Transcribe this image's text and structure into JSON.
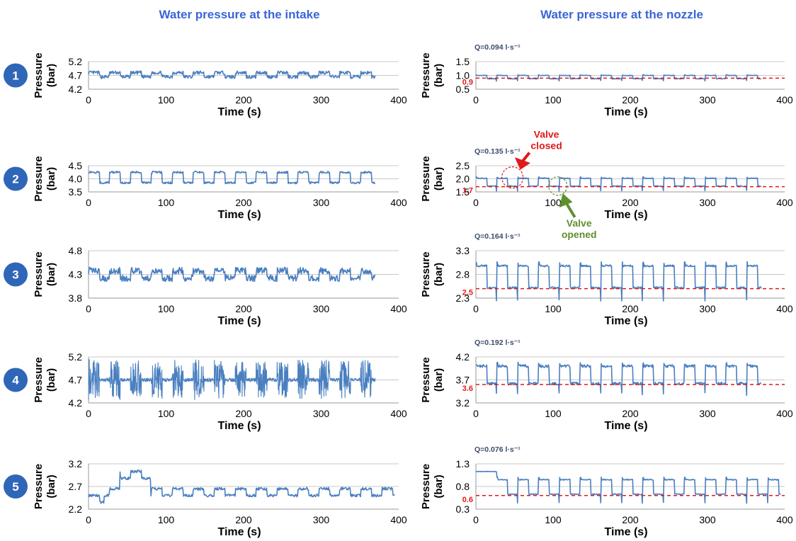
{
  "headers": {
    "left": "Water pressure at the intake",
    "right": "Water pressure at the nozzle"
  },
  "colors": {
    "series": "#4a7fc0",
    "reference": "#e01919",
    "closed": "#e01919",
    "opened": "#5f8f30",
    "badge": "#2f66b7",
    "header": "#3a64d6"
  },
  "chart_data": [
    {
      "id": "intake-1",
      "row": "1",
      "side": "intake",
      "type": "line",
      "ylabel": "Pressure (bar)",
      "xlabel": "Time (s)",
      "xlim": [
        0,
        400
      ],
      "ylim": [
        4.2,
        5.2
      ],
      "yticks": [
        "5.2",
        "4.7",
        "4.2"
      ],
      "xticks": [
        "0",
        "100",
        "200",
        "300",
        "400"
      ],
      "data_x_end": 370,
      "period": 27,
      "low": 4.65,
      "high": 4.8,
      "noise": 0.06,
      "grid": true
    },
    {
      "id": "nozzle-1",
      "row": "1",
      "side": "nozzle",
      "type": "line",
      "ylabel": "Pressure (bar)",
      "xlabel": "Time (s)",
      "flow": "Q=0.094 l·s⁻¹",
      "xlim": [
        0,
        400
      ],
      "ylim": [
        0.5,
        1.5
      ],
      "yticks": [
        "1.5",
        "1.0",
        "0.5"
      ],
      "xticks": [
        "0",
        "100",
        "200",
        "300",
        "400"
      ],
      "data_x_end": 370,
      "period": 27,
      "low": 0.88,
      "high": 1.0,
      "noise": 0.01,
      "reference": 0.9,
      "reference_label": "0.9",
      "grid": true
    },
    {
      "id": "intake-2",
      "row": "2",
      "side": "intake",
      "type": "line",
      "ylabel": "Pressure (bar)",
      "xlabel": "Time (s)",
      "xlim": [
        0,
        400
      ],
      "ylim": [
        3.5,
        4.5
      ],
      "yticks": [
        "4.5",
        "4.0",
        "3.5"
      ],
      "xticks": [
        "0",
        "100",
        "200",
        "300",
        "400"
      ],
      "data_x_end": 370,
      "period": 27,
      "low": 3.85,
      "high": 4.25,
      "noise": 0.04,
      "grid": true
    },
    {
      "id": "nozzle-2",
      "row": "2",
      "side": "nozzle",
      "type": "line",
      "ylabel": "Pressure (bar)",
      "xlabel": "Time (s)",
      "flow": "Q=0.135 l·s⁻¹",
      "xlim": [
        0,
        400
      ],
      "ylim": [
        1.5,
        2.5
      ],
      "yticks": [
        "2.5",
        "2.0",
        "1.5"
      ],
      "xticks": [
        "0",
        "100",
        "200",
        "300",
        "400"
      ],
      "data_x_end": 370,
      "period": 27,
      "low": 1.72,
      "high": 2.02,
      "noise": 0.015,
      "reference": 1.7,
      "reference_label": "1.7",
      "grid": true,
      "annotations": {
        "closed": {
          "label1": "Valve",
          "label2": "closed",
          "x": 62,
          "y": 2.05
        },
        "opened": {
          "label1": "Valve",
          "label2": "opened",
          "x": 108,
          "y": 1.75
        }
      }
    },
    {
      "id": "intake-3",
      "row": "3",
      "side": "intake",
      "type": "line",
      "ylabel": "Pressure (bar)",
      "xlabel": "Time (s)",
      "xlim": [
        0,
        400
      ],
      "ylim": [
        3.8,
        4.8
      ],
      "yticks": [
        "4.8",
        "4.3",
        "3.8"
      ],
      "xticks": [
        "0",
        "100",
        "200",
        "300",
        "400"
      ],
      "data_x_end": 370,
      "period": 27,
      "low": 4.22,
      "high": 4.38,
      "noise": 0.07,
      "grid": true
    },
    {
      "id": "nozzle-3",
      "row": "3",
      "side": "nozzle",
      "type": "line",
      "ylabel": "Pressure (bar)",
      "xlabel": "Time (s)",
      "flow": "Q=0.164 l·s⁻¹",
      "xlim": [
        0,
        400
      ],
      "ylim": [
        2.3,
        3.3
      ],
      "yticks": [
        "3.3",
        "2.8",
        "2.3"
      ],
      "xticks": [
        "0",
        "100",
        "200",
        "300",
        "400"
      ],
      "data_x_end": 370,
      "period": 27,
      "low": 2.52,
      "high": 2.98,
      "noise": 0.02,
      "reference": 2.5,
      "reference_label": "2.5",
      "grid": true
    },
    {
      "id": "intake-4",
      "row": "4",
      "side": "intake",
      "type": "line",
      "ylabel": "Pressure (bar)",
      "xlabel": "Time (s)",
      "xlim": [
        0,
        400
      ],
      "ylim": [
        4.2,
        5.2
      ],
      "yticks": [
        "5.2",
        "4.7",
        "4.2"
      ],
      "xticks": [
        "0",
        "100",
        "200",
        "300",
        "400"
      ],
      "data_x_end": 370,
      "period": 27,
      "low": 4.7,
      "high": 4.7,
      "noise": 0.04,
      "burst": 0.42,
      "grid": true
    },
    {
      "id": "nozzle-4",
      "row": "4",
      "side": "nozzle",
      "type": "line",
      "ylabel": "Pressure (bar)",
      "xlabel": "Time (s)",
      "flow": "Q=0.192 l·s⁻¹",
      "xlim": [
        0,
        400
      ],
      "ylim": [
        3.2,
        4.2
      ],
      "yticks": [
        "4.2",
        "3.7",
        "3.2"
      ],
      "xticks": [
        "0",
        "100",
        "200",
        "300",
        "400"
      ],
      "data_x_end": 370,
      "period": 27,
      "low": 3.62,
      "high": 4.0,
      "noise": 0.03,
      "reference": 3.6,
      "reference_label": "3.6",
      "grid": true
    },
    {
      "id": "intake-5",
      "row": "5",
      "side": "intake",
      "type": "line",
      "ylabel": "Pressure (bar)",
      "xlabel": "Time (s)",
      "xlim": [
        0,
        400
      ],
      "ylim": [
        2.2,
        3.2
      ],
      "yticks": [
        "3.2",
        "2.7",
        "2.2"
      ],
      "xticks": [
        "0",
        "100",
        "200",
        "300",
        "400"
      ],
      "data_x_end": 395,
      "period": 27,
      "low": 2.5,
      "high": 2.65,
      "noise": 0.03,
      "grid": true
    },
    {
      "id": "nozzle-5",
      "row": "5",
      "side": "nozzle",
      "type": "line",
      "ylabel": "Pressure (bar)",
      "xlabel": "Time (s)",
      "flow": "Q=0.076 l·s⁻¹",
      "xlim": [
        0,
        400
      ],
      "ylim": [
        0.3,
        1.3
      ],
      "yticks": [
        "1.3",
        "0.8",
        "0.3"
      ],
      "xticks": [
        "0",
        "100",
        "200",
        "300",
        "400"
      ],
      "data_x_end": 395,
      "period": 27,
      "low": 0.63,
      "high": 0.95,
      "noise": 0.01,
      "initial": 1.13,
      "initial_end": 27,
      "reference": 0.6,
      "reference_label": "0.6",
      "grid": true
    }
  ]
}
